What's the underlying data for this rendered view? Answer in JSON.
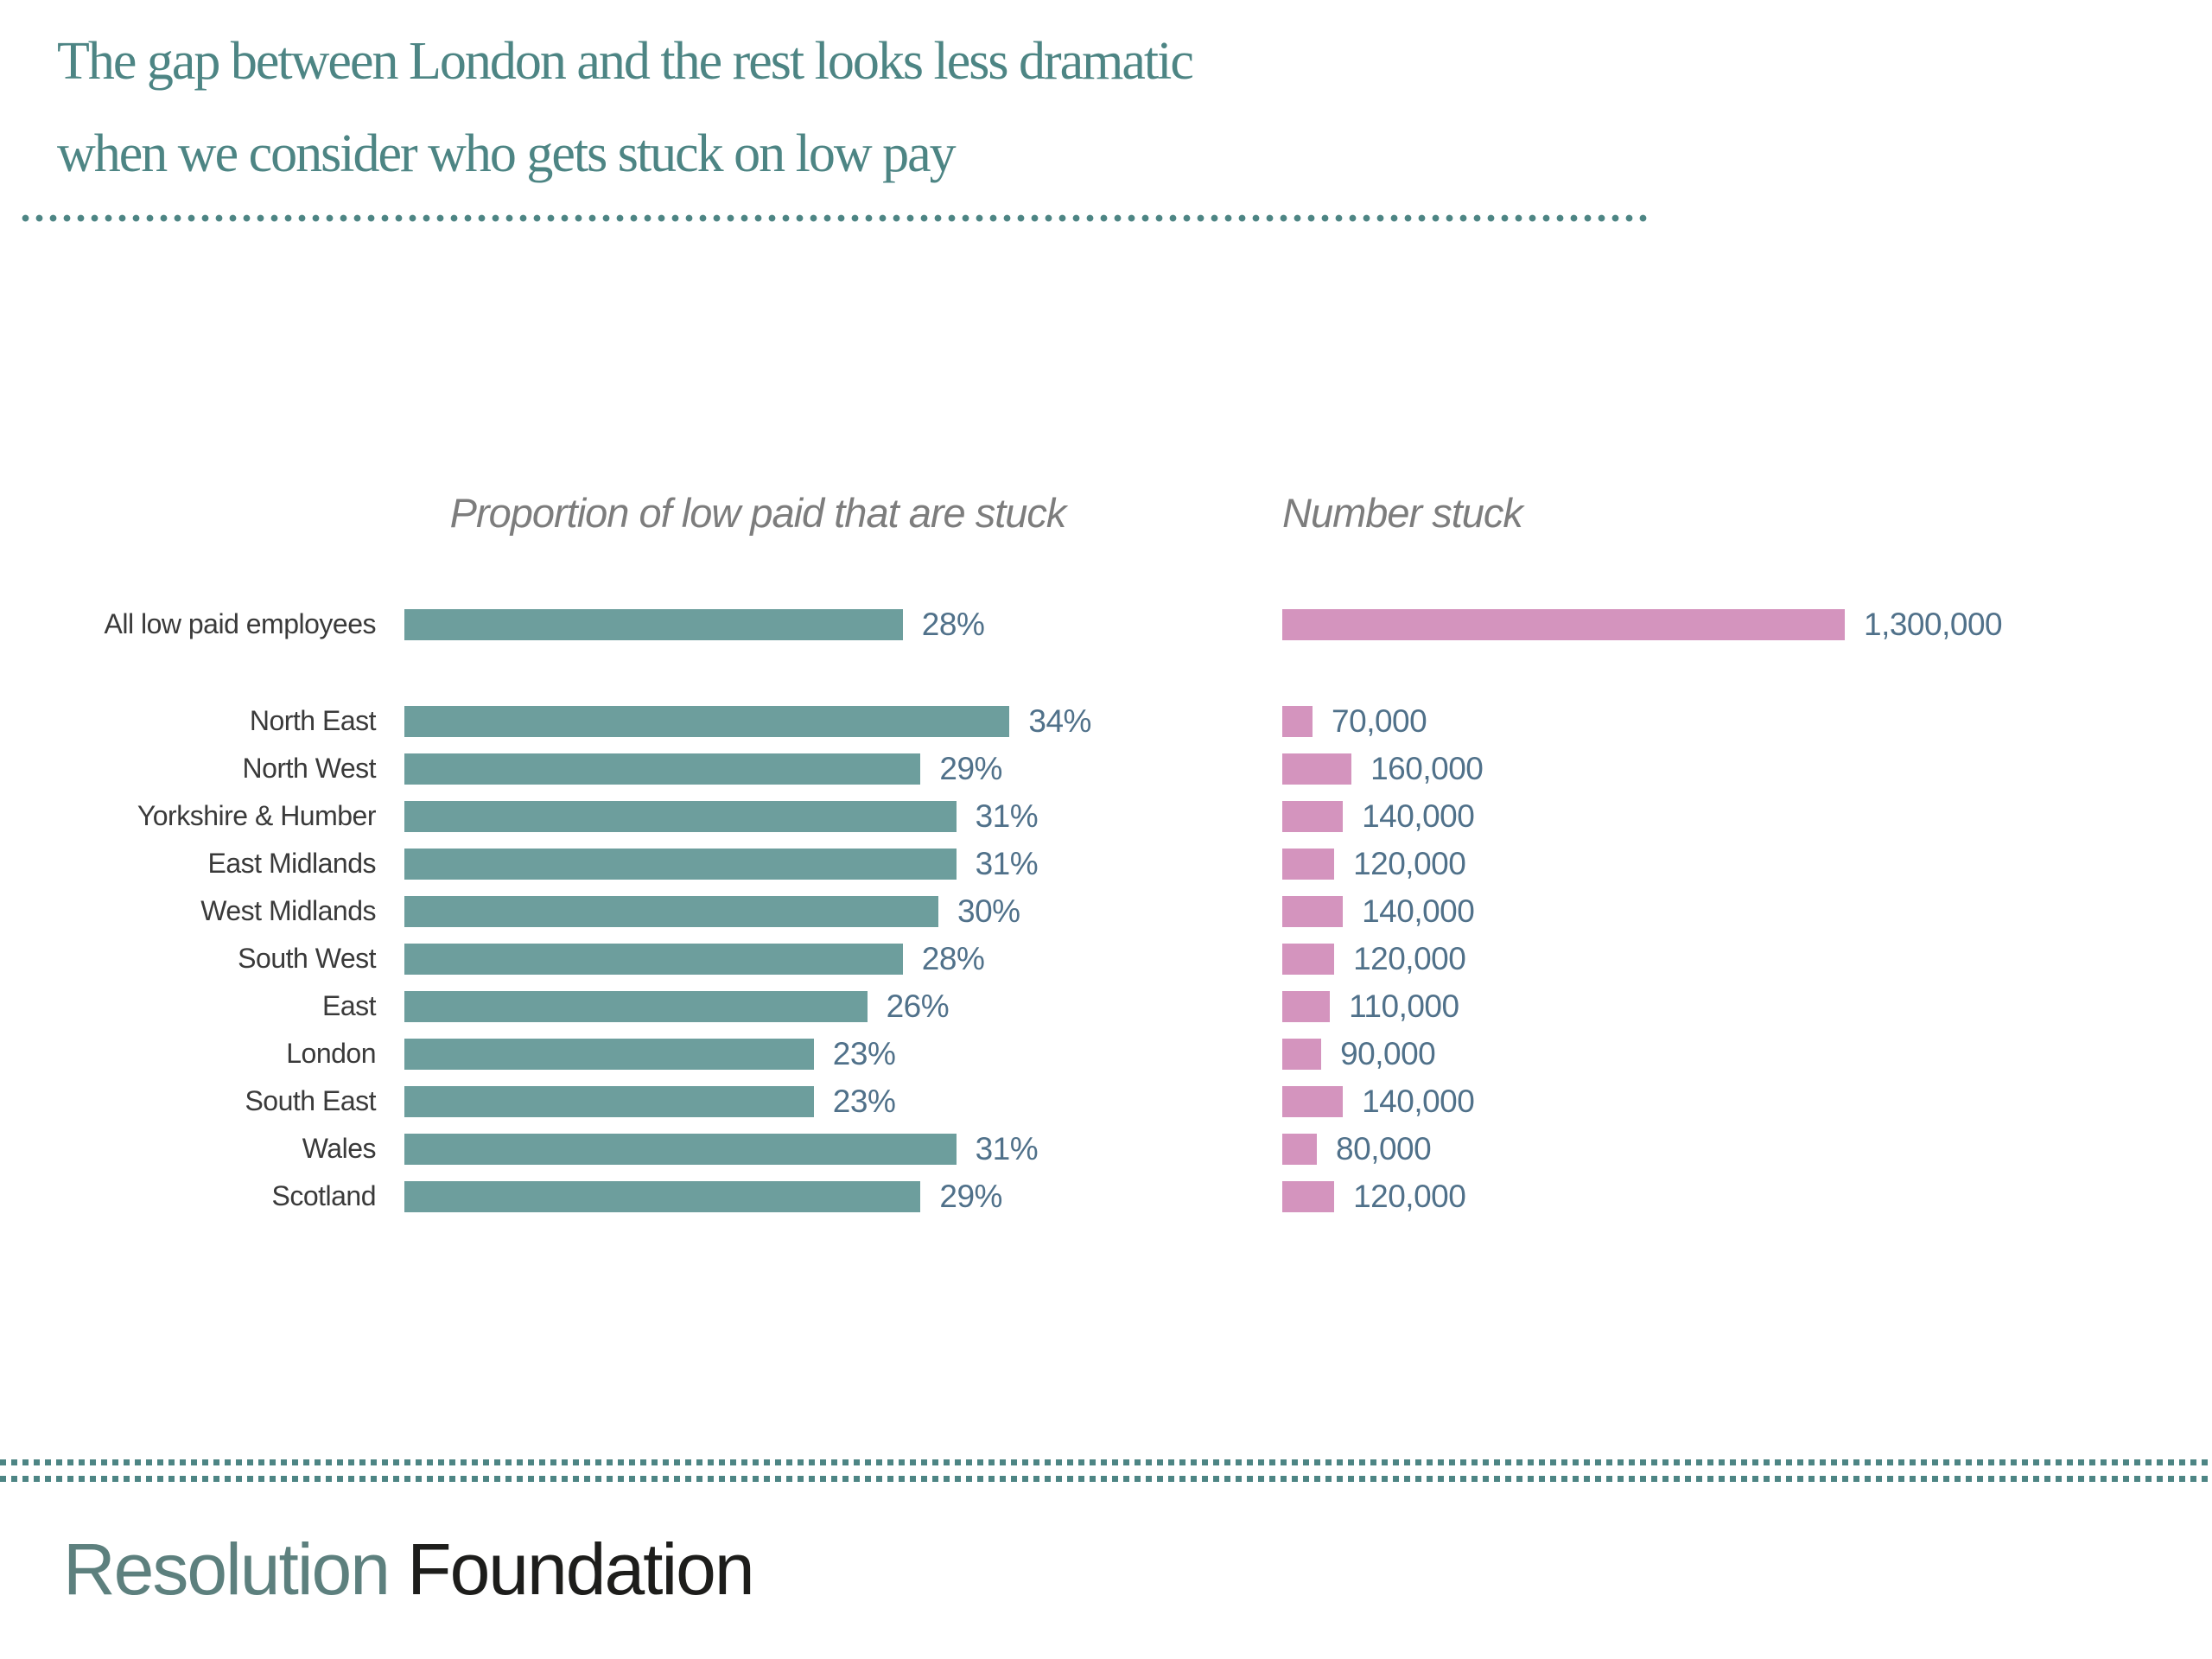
{
  "slide": {
    "title_line1": "The gap between London and the rest looks less dramatic",
    "title_line2": "when we consider who gets stuck on low pay"
  },
  "chart_data": {
    "type": "bar",
    "orientation": "horizontal",
    "left_title": "Proportion of low paid that are stuck",
    "right_title": "Number stuck",
    "categories": [
      "All low paid employees",
      "North East",
      "North West",
      "Yorkshire & Humber",
      "East Midlands",
      "West Midlands",
      "South West",
      "East",
      "London",
      "South East",
      "Wales",
      "Scotland"
    ],
    "series": [
      {
        "name": "Proportion of low paid that are stuck",
        "unit": "percent",
        "values": [
          28,
          34,
          29,
          31,
          31,
          30,
          28,
          26,
          23,
          23,
          31,
          29
        ],
        "labels": [
          "28%",
          "34%",
          "29%",
          "31%",
          "31%",
          "30%",
          "28%",
          "26%",
          "23%",
          "23%",
          "31%",
          "29%"
        ],
        "color": "#6d9e9d",
        "xlim": [
          0,
          40
        ]
      },
      {
        "name": "Number stuck",
        "unit": "people",
        "values": [
          1300000,
          70000,
          160000,
          140000,
          120000,
          140000,
          120000,
          110000,
          90000,
          140000,
          80000,
          120000
        ],
        "labels": [
          "1,300,000",
          "70,000",
          "160,000",
          "140,000",
          "120,000",
          "140,000",
          "120,000",
          "110,000",
          "90,000",
          "140,000",
          "80,000",
          "120,000"
        ],
        "color": "#d494be",
        "xlim": [
          0,
          1400000
        ]
      }
    ],
    "value_labels_shown": true,
    "gridlines": false,
    "legend": "none",
    "group_gap_after_index": 0
  },
  "footer": {
    "brand_primary": "Resolution",
    "brand_secondary": "Foundation"
  },
  "colors": {
    "title_teal": "#4d8584",
    "bar_teal": "#6d9e9d",
    "bar_pink": "#d494be",
    "value_label_slate": "#50718a",
    "category_text": "#3a3a3a",
    "chart_title_grey": "#7d7d7d",
    "brand_teal": "#5d807e",
    "brand_dark": "#1d1d1b",
    "dotted_rule_teal": "#4d8584"
  }
}
